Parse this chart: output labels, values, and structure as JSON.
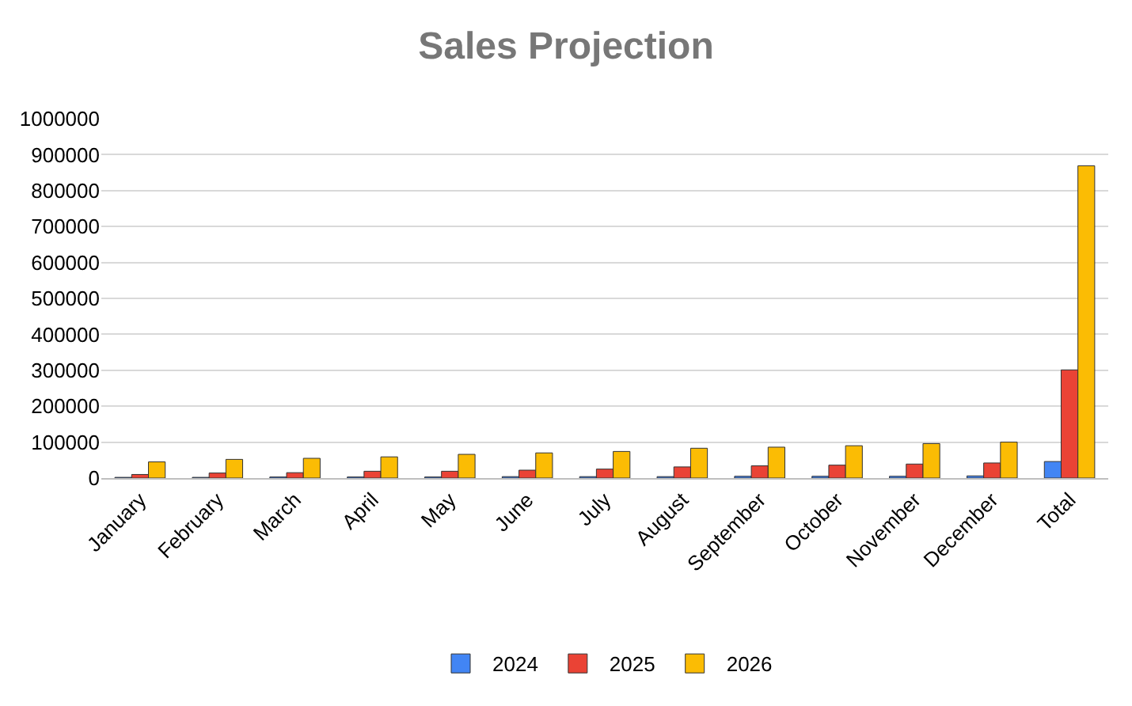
{
  "chart_data": {
    "type": "bar",
    "title": "Sales Projection",
    "categories": [
      "January",
      "February",
      "March",
      "April",
      "May",
      "June",
      "July",
      "August",
      "September",
      "October",
      "November",
      "December",
      "Total"
    ],
    "series": [
      {
        "name": "2024",
        "color": "#4285f4",
        "values": [
          2000,
          2000,
          3000,
          3000,
          3000,
          4000,
          4000,
          4000,
          5000,
          5000,
          5000,
          6000,
          46000
        ]
      },
      {
        "name": "2025",
        "color": "#ea4335",
        "values": [
          10000,
          14000,
          15000,
          19000,
          19000,
          22000,
          25000,
          31000,
          34000,
          36000,
          39000,
          42000,
          301000
        ]
      },
      {
        "name": "2026",
        "color": "#fbbc04",
        "values": [
          45000,
          52000,
          55000,
          59000,
          66000,
          70000,
          74000,
          83000,
          86000,
          90000,
          96000,
          100000,
          869000
        ]
      }
    ],
    "ylim": [
      0,
      1000000
    ],
    "yticks": [
      0,
      100000,
      200000,
      300000,
      400000,
      500000,
      600000,
      700000,
      800000,
      900000,
      1000000
    ],
    "grid": "y",
    "legend": "bottom"
  }
}
